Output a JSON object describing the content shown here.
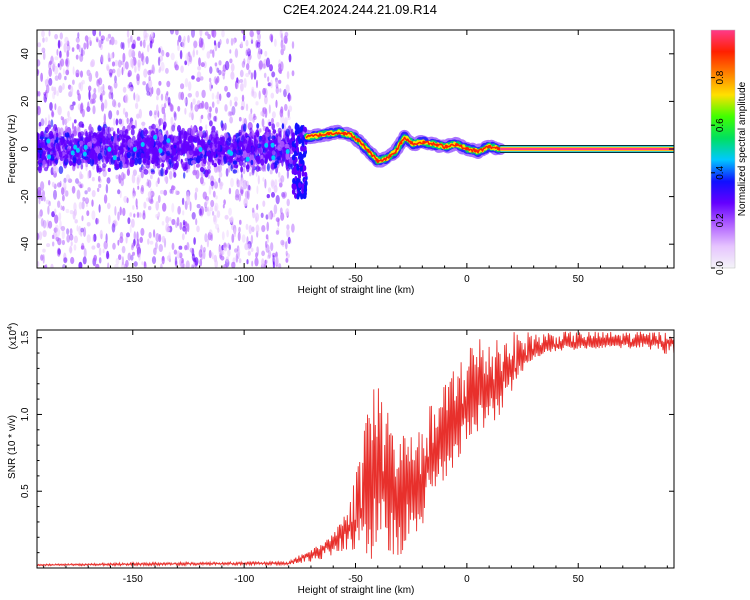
{
  "chart_data": [
    {
      "type": "heatmap",
      "title": "C2E4.2024.244.21.09.R14",
      "xlabel": "Height of straight line (km)",
      "ylabel": "Frequency (Hz)",
      "xlim": [
        -193,
        93
      ],
      "ylim": [
        -50,
        50
      ],
      "xticks": [
        -150,
        -100,
        -50,
        0,
        50
      ],
      "xtick_labels": [
        "-150",
        "-100",
        "-50",
        "0",
        "50"
      ],
      "yticks": [
        -40,
        -20,
        0,
        20,
        40
      ],
      "ytick_labels": [
        "-40",
        "-20",
        "0",
        "20",
        "40"
      ],
      "colorbar": {
        "label": "Normalized spectral amplitude",
        "range": [
          0,
          1
        ],
        "ticks": [
          0,
          0.2,
          0.4,
          0.6,
          0.8
        ],
        "tick_labels": [
          "0.0",
          "0.2",
          "0.4",
          "0.6",
          "0.8"
        ],
        "colors": [
          "#f4f4f8",
          "#e6c4ff",
          "#b060ff",
          "#6400ff",
          "#1010ff",
          "#00c8ff",
          "#00e060",
          "#40ff00",
          "#ffe000",
          "#ff8000",
          "#ff2000",
          "#ff3a8a"
        ]
      },
      "regions": [
        {
          "name": "noise scatter",
          "x_range": [
            -193,
            -78
          ],
          "freq_spread_hz": 50,
          "amplitude": "0.05-0.3"
        },
        {
          "name": "dense noise band",
          "x_range": [
            -193,
            -78
          ],
          "center_hz": 0,
          "halfwidth_hz": 12,
          "amplitude": "0.2-0.35"
        },
        {
          "name": "transition",
          "x_range": [
            -78,
            -72
          ],
          "center_hz": -5,
          "halfwidth_hz": 15
        },
        {
          "name": "carrier signal",
          "x_range": [
            -72,
            93
          ],
          "amplitude": "0.6-1.0"
        }
      ],
      "carrier_track": {
        "x": [
          -72,
          -65,
          -58,
          -52,
          -48,
          -44,
          -40,
          -36,
          -32,
          -28,
          -24,
          -20,
          -15,
          -10,
          -5,
          0,
          5,
          10,
          15,
          20,
          40,
          60,
          93
        ],
        "freq": [
          5,
          6,
          7,
          6,
          3,
          -1,
          -5,
          -4,
          -1,
          5,
          2,
          3,
          2,
          1,
          2,
          0,
          -1,
          1,
          0,
          0,
          0,
          0,
          0
        ]
      }
    },
    {
      "type": "line",
      "title": "",
      "xlabel": "Height of straight line (km)",
      "ylabel": "SNR (10 * v/v)",
      "y_multiplier_label": "(x10",
      "y_multiplier_exp": "4",
      "y_multiplier_close": ")",
      "xlim": [
        -193,
        93
      ],
      "ylim": [
        0,
        15500
      ],
      "xticks": [
        -150,
        -100,
        -50,
        0,
        50
      ],
      "xtick_labels": [
        "-150",
        "-100",
        "-50",
        "0",
        "50"
      ],
      "yticks": [
        5000,
        10000,
        15000
      ],
      "ytick_labels": [
        "0.5",
        "1.0",
        "1.5"
      ],
      "series": [
        {
          "name": "SNR",
          "color": "#e8302c",
          "x": [
            -193,
            -150,
            -100,
            -80,
            -75,
            -70,
            -65,
            -60,
            -55,
            -50,
            -47,
            -44,
            -41,
            -38,
            -35,
            -32,
            -29,
            -26,
            -23,
            -20,
            -17,
            -14,
            -11,
            -8,
            -5,
            -2,
            0,
            5,
            10,
            15,
            20,
            25,
            30,
            35,
            40,
            50,
            60,
            70,
            80,
            93
          ],
          "values": [
            200,
            250,
            300,
            300,
            600,
            900,
            1200,
            1700,
            2300,
            2900,
            3500,
            4400,
            5300,
            5900,
            5100,
            4300,
            5000,
            5800,
            5600,
            5800,
            6500,
            7300,
            8000,
            8500,
            9200,
            9800,
            10200,
            10800,
            11300,
            11900,
            12700,
            13500,
            14000,
            14300,
            14500,
            14600,
            14700,
            14700,
            14700,
            14700
          ],
          "envelope_max": [
            250,
            350,
            400,
            400,
            900,
            1200,
            1600,
            2400,
            3500,
            6000,
            9500,
            12000,
            13300,
            11500,
            10800,
            9000,
            8500,
            10600,
            9000,
            8800,
            10500,
            11000,
            11800,
            12700,
            13600,
            14500,
            15000,
            15200,
            15300,
            15400,
            15400,
            15400,
            15400,
            15400,
            15400,
            15400,
            15400,
            15400,
            15400,
            15400
          ],
          "envelope_min": [
            150,
            150,
            200,
            200,
            300,
            400,
            500,
            700,
            900,
            1200,
            700,
            500,
            400,
            600,
            500,
            400,
            1000,
            1800,
            2100,
            2800,
            3700,
            4800,
            5600,
            6000,
            6800,
            7500,
            8400,
            8700,
            9200,
            10000,
            11500,
            12800,
            13600,
            13900,
            14100,
            14200,
            14300,
            14300,
            14300,
            13800
          ]
        }
      ]
    }
  ]
}
